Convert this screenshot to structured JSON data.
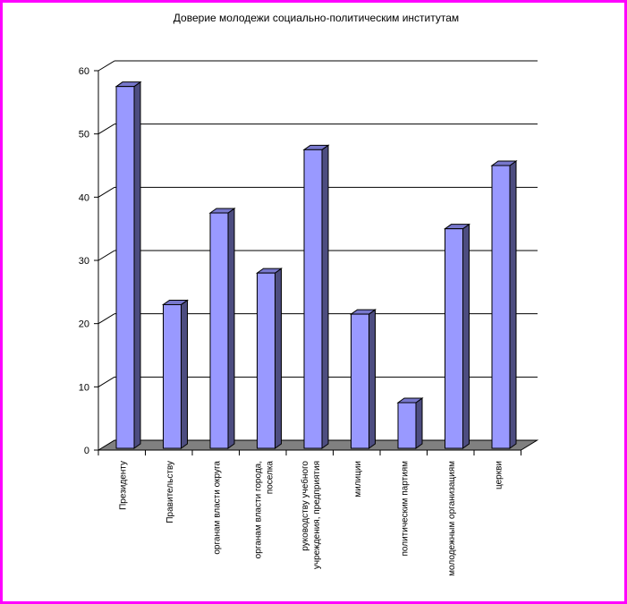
{
  "chart_data": {
    "type": "bar",
    "title": "Доверие молодежи социально-политическим институтам",
    "categories": [
      "Президенту",
      "Правительству",
      "органам власти округа",
      "органам власти города, поселка",
      "руководству учебного учреждения, предприятия",
      "милиции",
      "политическим партиям",
      "молодежным организациям",
      "церкви"
    ],
    "category_lines": [
      [
        "Президенту"
      ],
      [
        "Правительству"
      ],
      [
        "органам власти округа"
      ],
      [
        "органам власти города,",
        "поселка"
      ],
      [
        "руководству учебного",
        "учреждения, предприятия"
      ],
      [
        "милиции"
      ],
      [
        "политическим партиям"
      ],
      [
        "молодежным организациям"
      ],
      [
        "церкви"
      ]
    ],
    "values": [
      57.5,
      23,
      37.5,
      28,
      47.5,
      21.5,
      7.5,
      35,
      45
    ],
    "ylim": [
      0,
      60
    ],
    "yticks": [
      0,
      10,
      20,
      30,
      40,
      50,
      60
    ],
    "xlabel": "",
    "ylabel": "",
    "grid": true,
    "style": "3d",
    "colors": {
      "bar_front": "#9999ff",
      "bar_side": "#4d4d80",
      "bar_top": "#7777cc",
      "floor": "#808080",
      "border": "#ff00ff"
    }
  }
}
